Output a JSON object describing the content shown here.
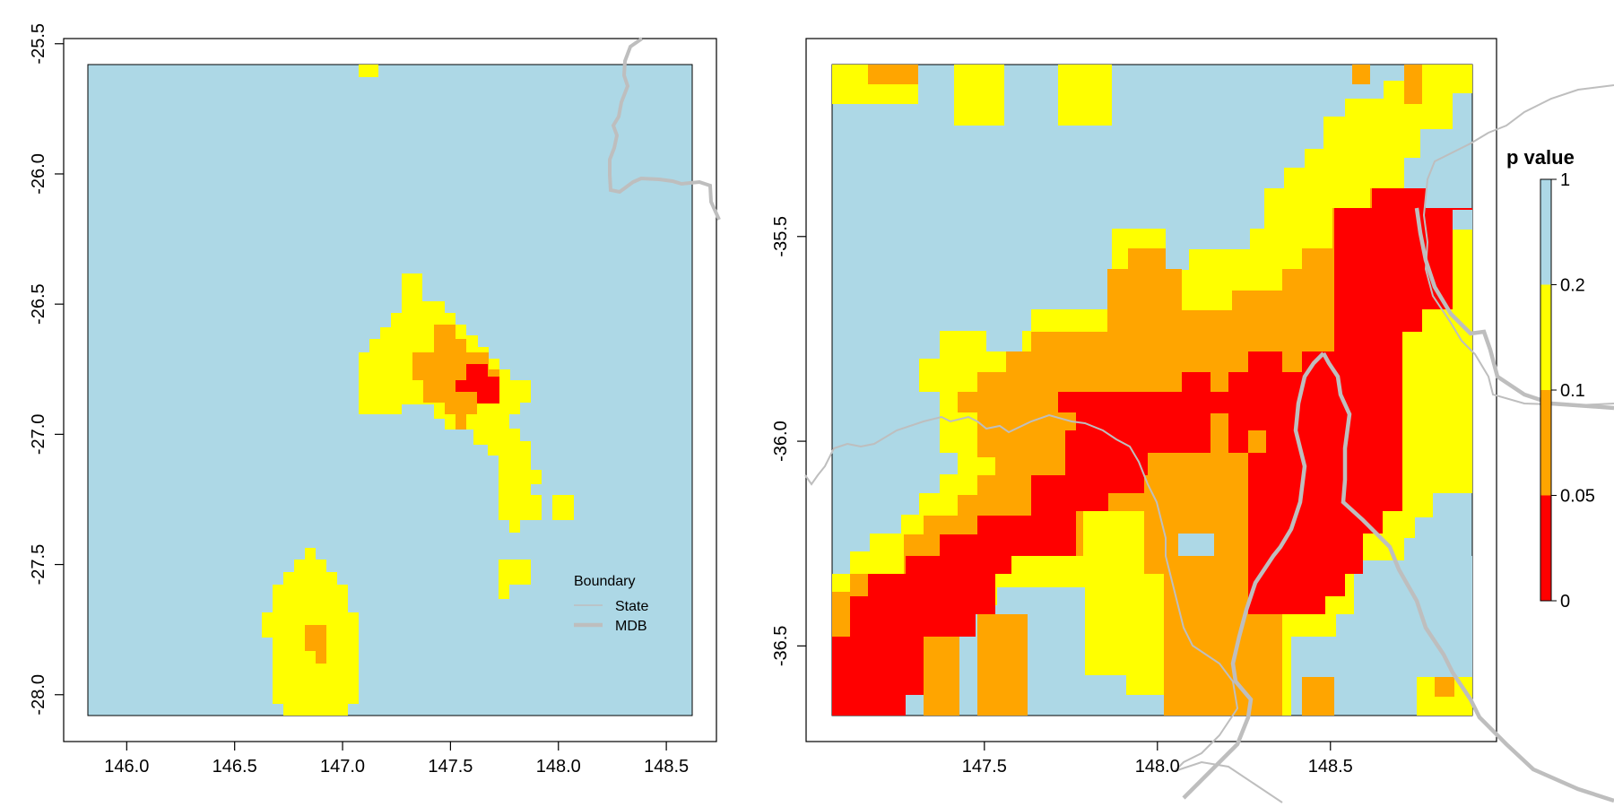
{
  "colors": {
    "p_0_005": "#ff0000",
    "p_005_01": "#ffa500",
    "p_01_02": "#ffff00",
    "p_02_1": "#add8e6",
    "boundary": "#bebebe"
  },
  "legend": {
    "title": "Boundary",
    "items": [
      {
        "label": "State",
        "line": "thin"
      },
      {
        "label": "MDB",
        "line": "thick"
      }
    ]
  },
  "colorbar": {
    "title": "p value",
    "breaks": [
      0,
      0.05,
      0.1,
      0.2,
      1
    ],
    "labels": [
      "0",
      "0.05",
      "0.1",
      "0.2",
      "1"
    ]
  },
  "chart_data": [
    {
      "type": "heatmap",
      "xlim": [
        145.82,
        148.62
      ],
      "ylim": [
        -28.08,
        -25.58
      ],
      "xticks": [
        146.0,
        146.5,
        147.0,
        147.5,
        148.0,
        148.5
      ],
      "xtick_labels": [
        "146.0",
        "146.5",
        "147.0",
        "147.5",
        "148.0",
        "148.5"
      ],
      "yticks": [
        -28.0,
        -27.5,
        -27.0,
        -26.5,
        -26.0,
        -25.5
      ],
      "ytick_labels": [
        "-28.0",
        "-27.5",
        "-27.0",
        "-26.5",
        "-26.0",
        "-25.5"
      ],
      "categories": [
        "p < 0.05",
        "0.05–0.1",
        "0.1–0.2",
        "> 0.2"
      ],
      "regions": [
        {
          "category": "p < 0.05",
          "cells": [
            [
              147.62,
              -26.83
            ],
            [
              147.67,
              -26.83
            ],
            [
              147.67,
              -26.87
            ],
            [
              147.72,
              -26.87
            ]
          ]
        },
        {
          "category": "0.05–0.1",
          "cells": [
            [
              147.55,
              -26.72
            ],
            [
              147.55,
              -26.93
            ],
            [
              147.72,
              -26.93
            ],
            [
              146.87,
              -27.82
            ]
          ]
        },
        {
          "category": "0.1–0.2",
          "cells": [
            [
              147.3,
              -26.4
            ],
            [
              147.1,
              -26.72
            ],
            [
              147.85,
              -26.85
            ],
            [
              147.85,
              -27.8
            ],
            [
              146.75,
              -27.6
            ],
            [
              146.95,
              -28.05
            ]
          ]
        }
      ]
    },
    {
      "type": "heatmap",
      "xlim": [
        147.06,
        148.91
      ],
      "ylim": [
        -36.67,
        -35.08
      ],
      "xticks": [
        147.5,
        148.0,
        148.5
      ],
      "xtick_labels": [
        "147.5",
        "148.0",
        "148.5"
      ],
      "yticks": [
        -36.5,
        -36.0,
        -35.5
      ],
      "ytick_labels": [
        "-36.5",
        "-36.0",
        "-35.5"
      ],
      "categories": [
        "p < 0.05",
        "0.05–0.1",
        "0.1–0.2",
        "> 0.2"
      ],
      "regions": [
        {
          "category": "p < 0.05",
          "cells": [
            [
              147.1,
              -36.6
            ],
            [
              147.7,
              -36.2
            ],
            [
              148.1,
              -36.0
            ],
            [
              148.5,
              -36.2
            ],
            [
              148.75,
              -35.5
            ]
          ]
        },
        {
          "category": "0.05–0.1",
          "cells": [
            [
              147.3,
              -36.55
            ],
            [
              147.9,
              -36.45
            ],
            [
              148.25,
              -35.75
            ],
            [
              147.55,
              -36.2
            ]
          ]
        },
        {
          "category": "0.1–0.2",
          "cells": [
            [
              147.2,
              -36.35
            ],
            [
              147.4,
              -35.8
            ],
            [
              148.55,
              -35.3
            ],
            [
              147.3,
              -35.1
            ],
            [
              148.8,
              -35.9
            ]
          ]
        }
      ]
    }
  ]
}
